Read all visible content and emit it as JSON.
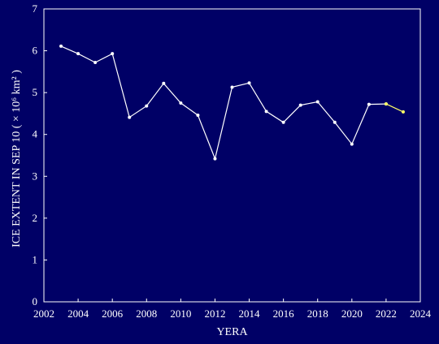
{
  "chart_data": {
    "type": "line",
    "title": "",
    "xlabel": "YERA",
    "ylabel": "ICE EXTENT IN SEP 10 ( × 10⁶ km² )",
    "xlim": [
      2002,
      2024
    ],
    "ylim": [
      0,
      7
    ],
    "xticks": [
      2002,
      2004,
      2006,
      2008,
      2010,
      2012,
      2014,
      2016,
      2018,
      2020,
      2022,
      2024
    ],
    "yticks": [
      0,
      1,
      2,
      3,
      4,
      5,
      6,
      7
    ],
    "grid": false,
    "legend": "none",
    "series": [
      {
        "color": "#ffffff",
        "x": [
          2003,
          2004,
          2005,
          2006,
          2007,
          2008,
          2009,
          2010,
          2011,
          2012,
          2013,
          2014,
          2015,
          2016,
          2017,
          2018,
          2019,
          2020,
          2021,
          2022
        ],
        "y": [
          6.11,
          5.93,
          5.72,
          5.93,
          4.41,
          4.68,
          5.22,
          4.75,
          4.46,
          3.42,
          5.13,
          5.23,
          4.55,
          4.29,
          4.7,
          4.78,
          4.29,
          3.77,
          4.72,
          4.73
        ]
      },
      {
        "color": "#ffff66",
        "x": [
          2022,
          2023
        ],
        "y": [
          4.73,
          4.54
        ]
      }
    ]
  },
  "colors": {
    "background": "#000066",
    "axis": "#ffffff"
  }
}
